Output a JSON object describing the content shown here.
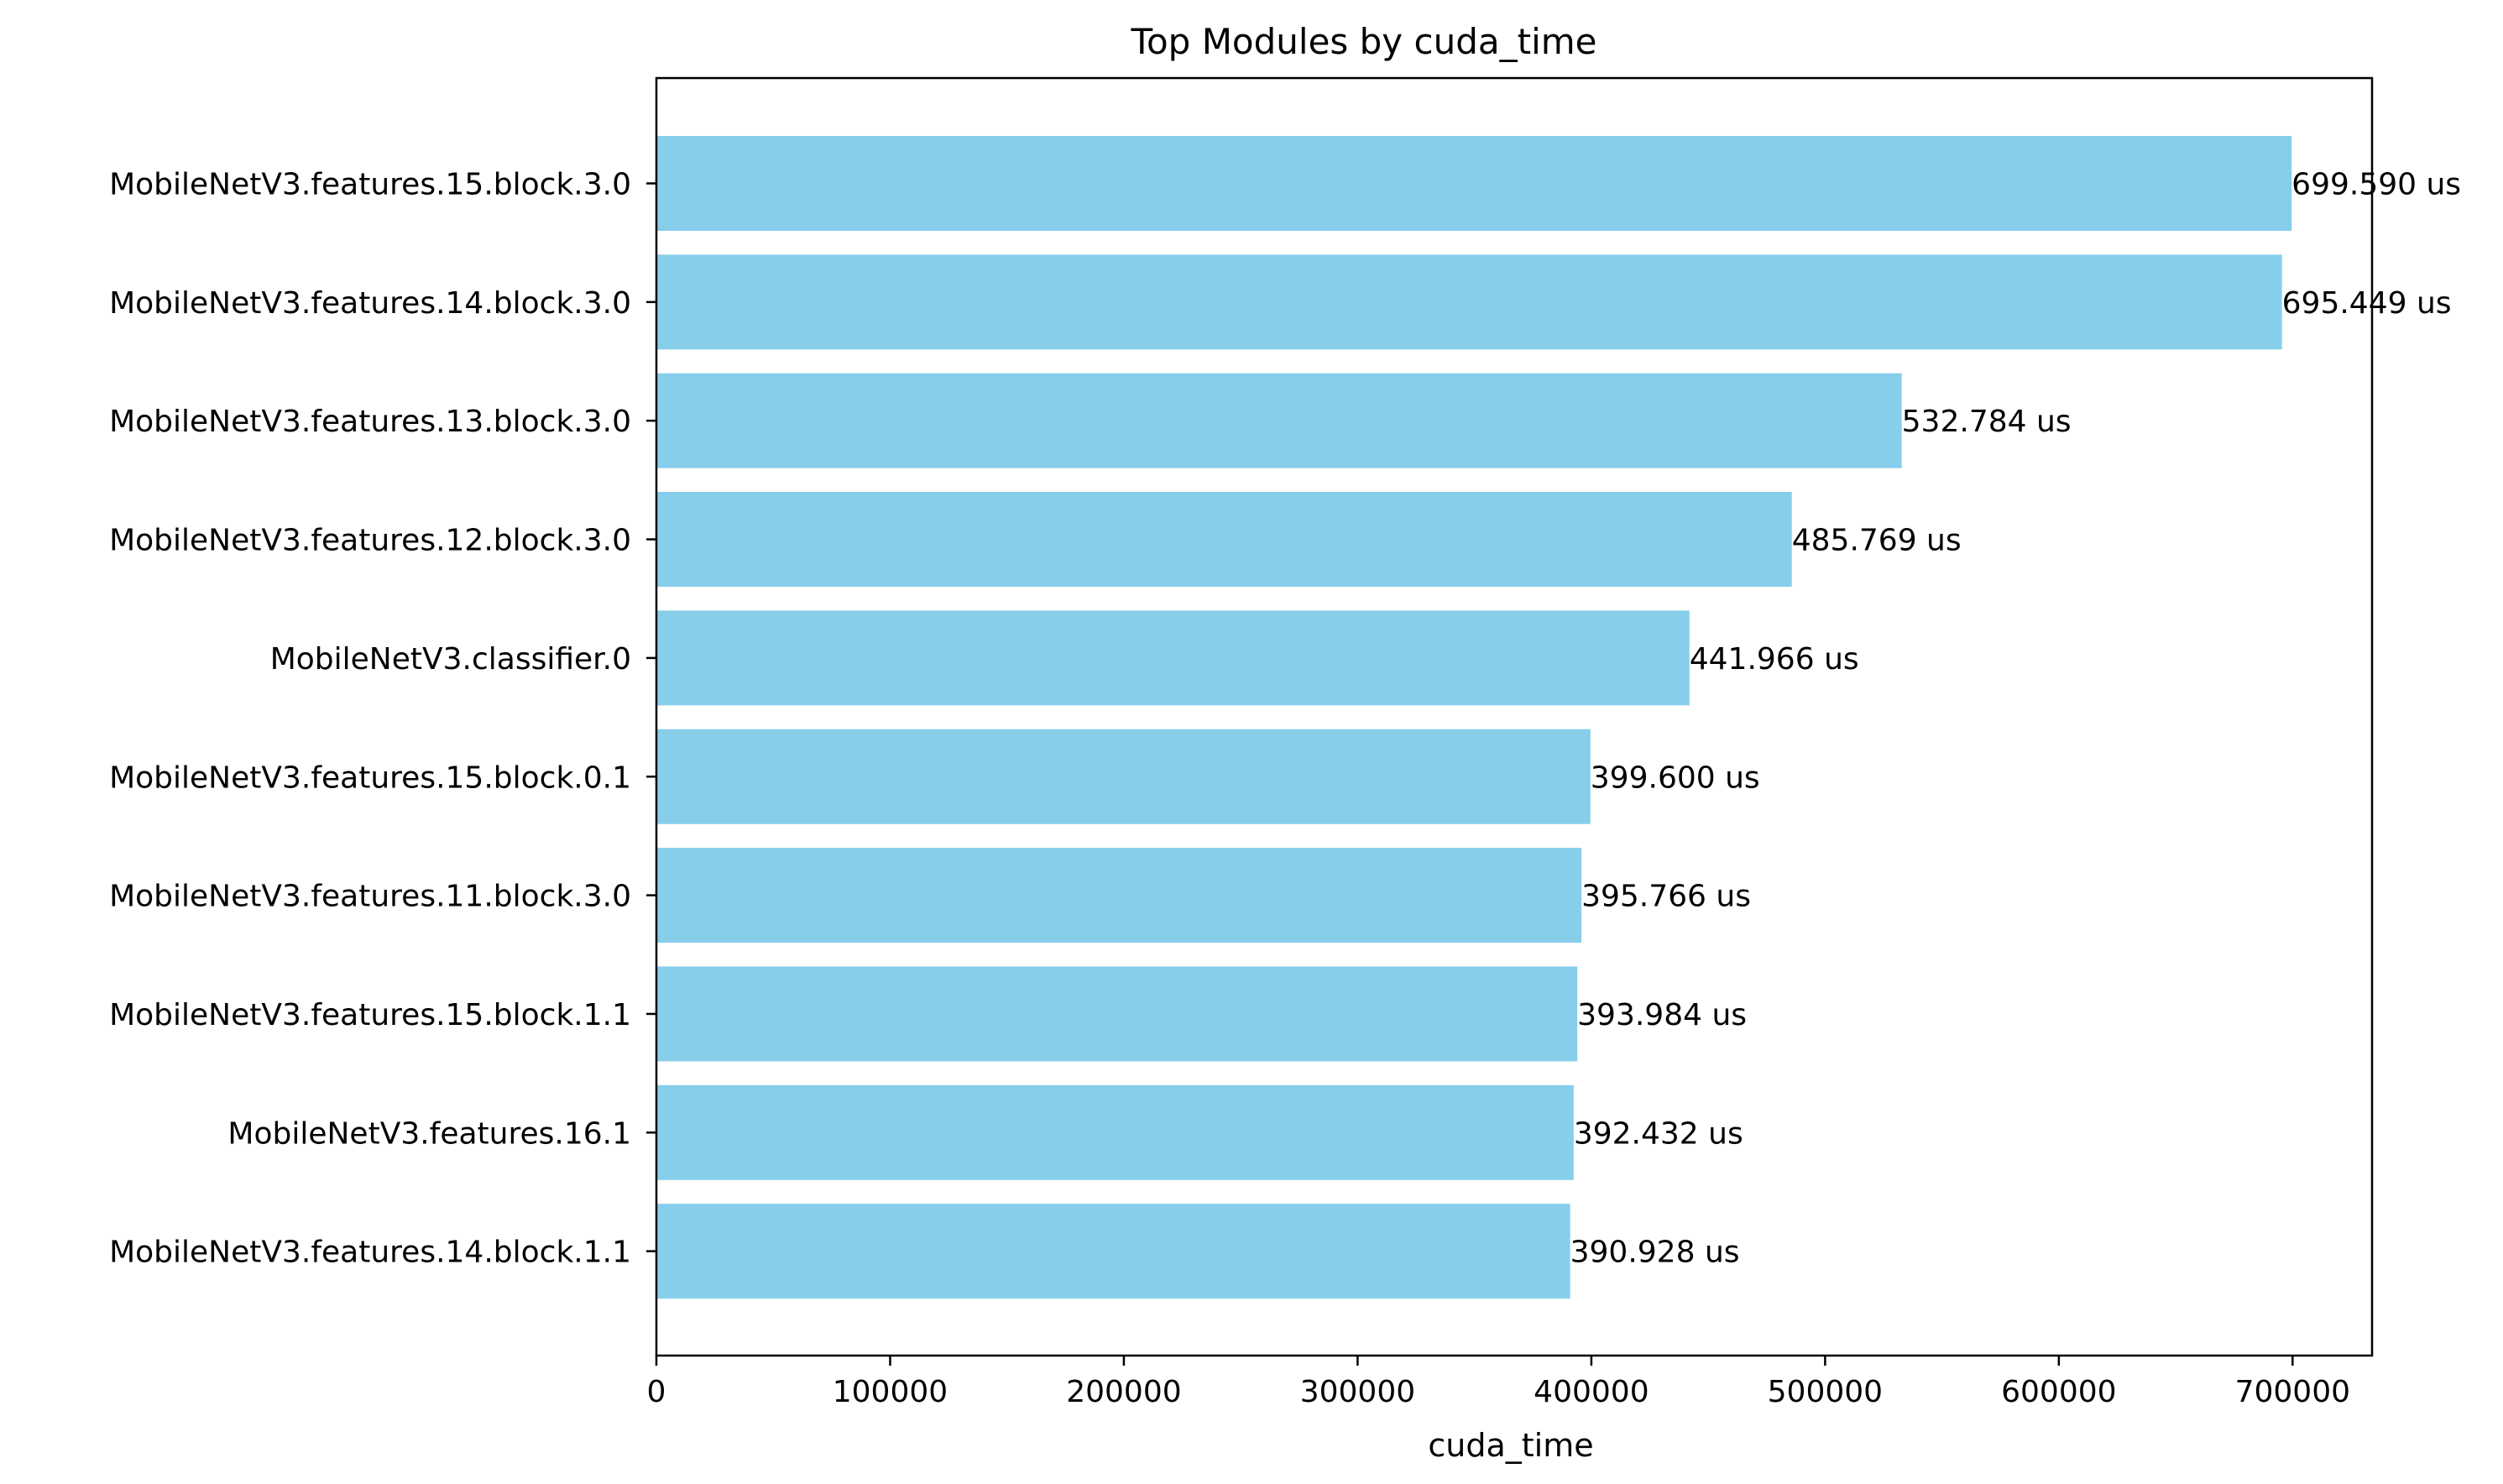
{
  "chart_data": {
    "type": "bar",
    "orientation": "horizontal",
    "title": "Top Modules by cuda_time",
    "xlabel": "cuda_time",
    "ylabel": "",
    "xlim": [
      0,
      734000
    ],
    "xticks": [
      0,
      100000,
      200000,
      300000,
      400000,
      500000,
      600000,
      700000
    ],
    "xtick_labels": [
      "0",
      "100000",
      "200000",
      "300000",
      "400000",
      "500000",
      "600000",
      "700000"
    ],
    "grid": false,
    "legend": null,
    "bar_color": "#87CEEB",
    "categories": [
      "MobileNetV3.features.15.block.3.0",
      "MobileNetV3.features.14.block.3.0",
      "MobileNetV3.features.13.block.3.0",
      "MobileNetV3.features.12.block.3.0",
      "MobileNetV3.classifier.0",
      "MobileNetV3.features.15.block.0.1",
      "MobileNetV3.features.11.block.3.0",
      "MobileNetV3.features.15.block.1.1",
      "MobileNetV3.features.16.1",
      "MobileNetV3.features.14.block.1.1"
    ],
    "values": [
      699590,
      695449,
      532784,
      485769,
      441966,
      399600,
      395766,
      393984,
      392432,
      390928
    ],
    "data_labels": [
      "699.590 us",
      "695.449 us",
      "532.784 us",
      "485.769 us",
      "441.966 us",
      "399.600 us",
      "395.766 us",
      "393.984 us",
      "392.432 us",
      "390.928 us"
    ]
  }
}
